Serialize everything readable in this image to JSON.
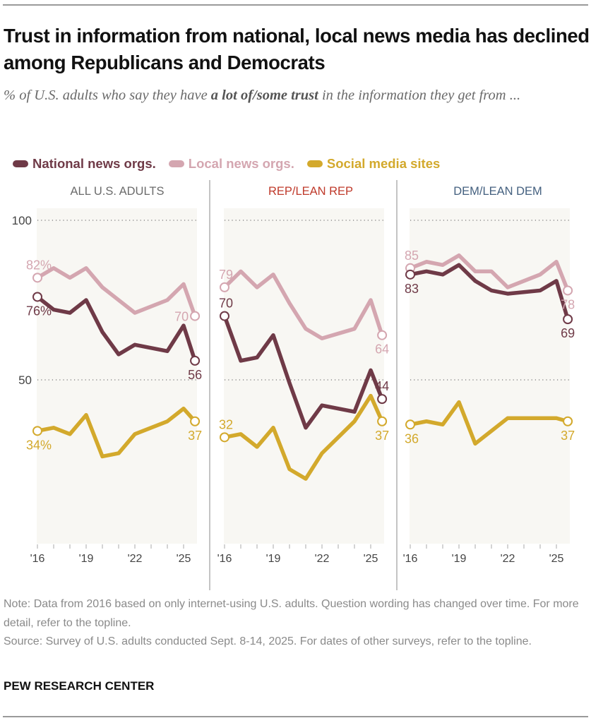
{
  "title": "Trust in information from national, local news media has declined among Republicans and Democrats",
  "subtitle": {
    "before": "% of U.S. adults who say they have ",
    "bold": "a lot of/some trust",
    "after": " in the information they get from ..."
  },
  "legend": [
    {
      "label": "National news orgs.",
      "color": "#6f3a47"
    },
    {
      "label": "Local news orgs.",
      "color": "#d4a6b0"
    },
    {
      "label": "Social media sites",
      "color": "#d3a92c"
    }
  ],
  "chart_data": {
    "type": "line",
    "x": [
      2016,
      2017,
      2018,
      2019,
      2020,
      2021,
      2022,
      2024,
      2025.0,
      2025.7
    ],
    "x_ticks": [
      2016,
      2017,
      2018,
      2019,
      2020,
      2021,
      2022,
      2023,
      2024,
      2025
    ],
    "x_tick_labels": [
      {
        "year": 2016,
        "label": "'16"
      },
      {
        "year": 2019,
        "label": "'19"
      },
      {
        "year": 2022,
        "label": "'22"
      },
      {
        "year": 2025,
        "label": "'25"
      }
    ],
    "ylim": [
      0,
      100
    ],
    "y_gridlines": [
      100,
      50
    ],
    "y_tick_labels": [
      "100",
      "50"
    ],
    "grid": true,
    "legend_position": "top",
    "panels": [
      {
        "title": "ALL U.S. ADULTS",
        "title_color": "#6b6b6b",
        "series": [
          {
            "name": "National news orgs.",
            "values": [
              76,
              72,
              71,
              75,
              65,
              58,
              61,
              59,
              67,
              56
            ],
            "labels": [
              {
                "text": "76%",
                "at": "start",
                "pos": "below"
              },
              {
                "text": "56",
                "at": "end",
                "pos": "below"
              }
            ]
          },
          {
            "name": "Local news orgs.",
            "values": [
              82,
              85,
              82,
              85,
              79,
              75,
              71,
              75,
              80,
              70
            ],
            "labels": [
              {
                "text": "82%",
                "at": "start",
                "pos": "above"
              },
              {
                "text": "70",
                "at": "end",
                "pos": "left"
              }
            ]
          },
          {
            "name": "Social media sites",
            "values": [
              34,
              35,
              33,
              39,
              26,
              27,
              33,
              37,
              41,
              37
            ],
            "labels": [
              {
                "text": "34%",
                "at": "start",
                "pos": "below"
              },
              {
                "text": "37",
                "at": "end",
                "pos": "below"
              }
            ]
          }
        ]
      },
      {
        "title": "REP/LEAN REP",
        "title_color": "#bf3a2b",
        "series": [
          {
            "name": "National news orgs.",
            "values": [
              70,
              56,
              57,
              64,
              49,
              35,
              42,
              40,
              53,
              44
            ],
            "labels": [
              {
                "text": "70",
                "at": "start",
                "pos": "above"
              },
              {
                "text": "44",
                "at": "end",
                "pos": "above"
              }
            ]
          },
          {
            "name": "Local news orgs.",
            "values": [
              79,
              84,
              79,
              83,
              74,
              66,
              63,
              66,
              75,
              64
            ],
            "labels": [
              {
                "text": "79",
                "at": "start",
                "pos": "above"
              },
              {
                "text": "64",
                "at": "end",
                "pos": "below"
              }
            ]
          },
          {
            "name": "Social media sites",
            "values": [
              32,
              33,
              29,
              35,
              22,
              19,
              27,
              37,
              45,
              37
            ],
            "labels": [
              {
                "text": "32",
                "at": "start",
                "pos": "above"
              },
              {
                "text": "37",
                "at": "end",
                "pos": "below"
              }
            ]
          }
        ]
      },
      {
        "title": "DEM/LEAN DEM",
        "title_color": "#44607f",
        "series": [
          {
            "name": "National news orgs.",
            "values": [
              83,
              84,
              83,
              86,
              81,
              78,
              77,
              78,
              81,
              69
            ],
            "labels": [
              {
                "text": "83",
                "at": "start",
                "pos": "below"
              },
              {
                "text": "69",
                "at": "end",
                "pos": "below"
              }
            ]
          },
          {
            "name": "Local news orgs.",
            "values": [
              85,
              87,
              86,
              89,
              84,
              84,
              79,
              83,
              87,
              78
            ],
            "labels": [
              {
                "text": "85",
                "at": "start",
                "pos": "above"
              },
              {
                "text": "78",
                "at": "end",
                "pos": "below"
              }
            ]
          },
          {
            "name": "Social media sites",
            "values": [
              36,
              37,
              36,
              43,
              30,
              34,
              38,
              38,
              38,
              37
            ],
            "labels": [
              {
                "text": "36",
                "at": "start",
                "pos": "below"
              },
              {
                "text": "37",
                "at": "end",
                "pos": "below"
              }
            ]
          }
        ]
      }
    ]
  },
  "notes": {
    "note": "Note: Data from 2016 based on only internet-using U.S. adults. Question wording has changed over time. For more detail, refer to the topline.",
    "source": "Source: Survey of U.S. adults conducted Sept. 8-14, 2025. For dates of other surveys, refer to the topline."
  },
  "brand": "PEW RESEARCH CENTER",
  "colors": {
    "panel_bg": "#f8f7f3",
    "national": "#6f3a47",
    "local": "#d4a6b0",
    "social": "#d3a92c"
  }
}
